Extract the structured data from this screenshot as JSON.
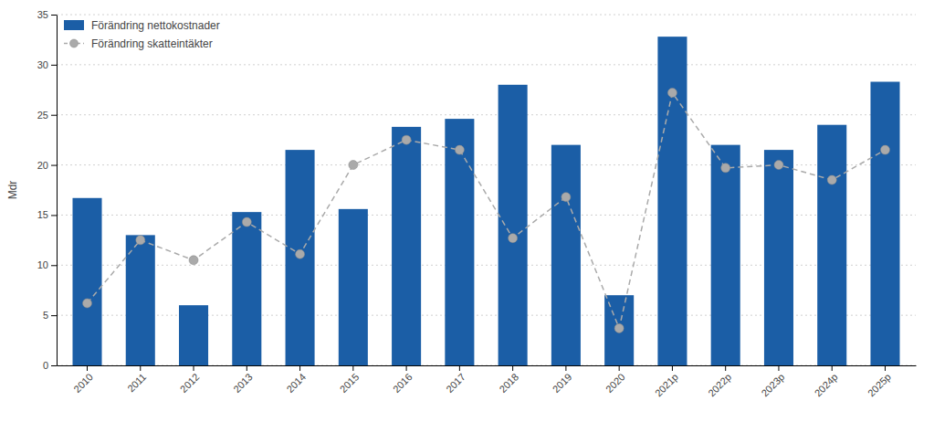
{
  "chart_data": {
    "type": "bar",
    "ylabel": "Mdr",
    "categories": [
      "2010",
      "2011",
      "2012",
      "2013",
      "2014",
      "2015",
      "2016",
      "2017",
      "2018",
      "2019",
      "2020",
      "2021p",
      "2022p",
      "2023p",
      "2024p",
      "2025p"
    ],
    "series": [
      {
        "name": "Förändring nettokostnader",
        "type": "bar",
        "color": "#1B5EA6",
        "values": [
          16.7,
          13.0,
          6.0,
          15.3,
          21.5,
          15.6,
          23.8,
          24.6,
          28.0,
          22.0,
          7.0,
          32.8,
          22.0,
          21.5,
          24.0,
          28.3
        ]
      },
      {
        "name": "Förändring skatteintäkter",
        "type": "line",
        "color": "#AAAAAA",
        "marker": "circle",
        "line_style": "dashed",
        "values": [
          6.2,
          12.5,
          10.5,
          14.3,
          11.1,
          20.0,
          22.5,
          21.5,
          12.7,
          16.8,
          3.7,
          27.2,
          19.7,
          20.0,
          18.5,
          21.5
        ]
      }
    ],
    "ylim": [
      0,
      35
    ],
    "yticks": [
      0,
      5,
      10,
      15,
      20,
      25,
      30,
      35
    ],
    "grid": true,
    "legend": "upper left"
  }
}
